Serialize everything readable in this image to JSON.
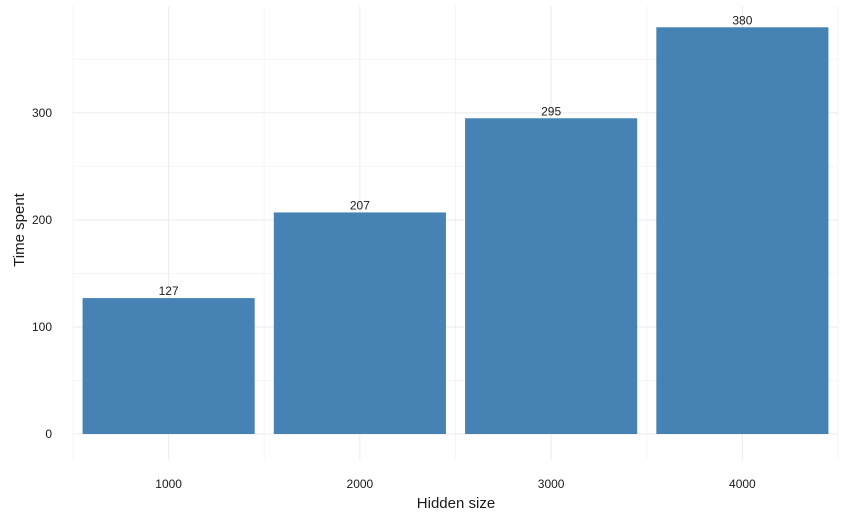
{
  "chart_data": {
    "type": "bar",
    "title": "",
    "xlabel": "Hidden size",
    "ylabel": "Time spent",
    "categories": [
      "1000",
      "2000",
      "3000",
      "4000"
    ],
    "values": [
      127,
      207,
      295,
      380
    ],
    "data_labels": [
      "127",
      "207",
      "295",
      "380"
    ],
    "yticks": [
      0,
      100,
      200,
      300
    ],
    "ylim": [
      0,
      400
    ],
    "grid": true,
    "legend": "none",
    "bar_color": "#4682B4",
    "grid_color": "#EBEBEB"
  }
}
